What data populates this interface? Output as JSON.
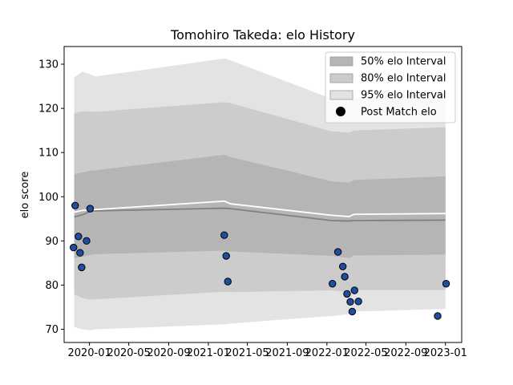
{
  "chart_data": {
    "type": "area",
    "title": "Tomohiro Takeda: elo History",
    "xlabel": "",
    "ylabel": "elo score",
    "xlim": [
      "2019-10-15",
      "2023-02-20"
    ],
    "ylim": [
      67,
      134
    ],
    "y_ticks": [
      70,
      80,
      90,
      100,
      110,
      120,
      130
    ],
    "x_ticks": [
      {
        "date": "2020-01-01",
        "label": "2020-01"
      },
      {
        "date": "2020-05-01",
        "label": "2020-05"
      },
      {
        "date": "2020-09-01",
        "label": "2020-09"
      },
      {
        "date": "2021-01-01",
        "label": "2021-01"
      },
      {
        "date": "2021-05-01",
        "label": "2021-05"
      },
      {
        "date": "2021-09-01",
        "label": "2021-09"
      },
      {
        "date": "2022-01-01",
        "label": "2022-01"
      },
      {
        "date": "2022-05-01",
        "label": "2022-05"
      },
      {
        "date": "2022-09-01",
        "label": "2022-09"
      },
      {
        "date": "2023-01-01",
        "label": "2023-01"
      }
    ],
    "legend_position": "top-right",
    "grid": false,
    "colors": {
      "band95": "#e3e3e3",
      "band80": "#cccccc",
      "band50": "#b5b5b5",
      "median_line": "#808080",
      "mean_line": "#ffffff",
      "points": "#1f4e9e",
      "point_edge": "#000000"
    },
    "legend": [
      {
        "label": "50% elo Interval",
        "key": "band50"
      },
      {
        "label": "80% elo Interval",
        "key": "band80"
      },
      {
        "label": "95% elo Interval",
        "key": "band95"
      },
      {
        "label": "Post Match elo",
        "key": "points"
      }
    ],
    "bands": {
      "dates": [
        "2019-11-15",
        "2019-12-10",
        "2020-01-01",
        "2020-01-20",
        "2021-02-20",
        "2021-03-10",
        "2022-01-15",
        "2022-03-10",
        "2022-03-25",
        "2023-01-01"
      ],
      "p95_upper": [
        127.0,
        128.3,
        127.8,
        127.2,
        131.3,
        130.9,
        122.2,
        121.8,
        122.3,
        123.6
      ],
      "p80_upper": [
        118.9,
        119.3,
        119.3,
        119.2,
        121.4,
        121.2,
        114.8,
        114.5,
        115.0,
        115.7
      ],
      "p50_upper": [
        105.1,
        105.5,
        105.9,
        106.0,
        109.5,
        109.0,
        103.5,
        103.2,
        103.8,
        104.6
      ],
      "median": [
        95.4,
        95.9,
        96.6,
        96.8,
        97.4,
        97.3,
        94.6,
        94.5,
        94.6,
        94.7
      ],
      "mean": [
        96.5,
        96.9,
        97.0,
        97.1,
        99.0,
        98.4,
        95.8,
        95.5,
        96.0,
        96.2
      ],
      "p50_lower": [
        86.1,
        86.4,
        86.8,
        87.0,
        87.8,
        87.6,
        86.6,
        86.1,
        86.7,
        86.9
      ],
      "p80_lower": [
        77.9,
        77.1,
        76.7,
        76.8,
        78.5,
        78.4,
        78.8,
        78.4,
        78.9,
        78.9
      ],
      "p95_lower": [
        70.5,
        70.0,
        69.8,
        70.0,
        71.1,
        71.3,
        73.0,
        73.4,
        74.0,
        74.6
      ]
    },
    "points": [
      {
        "date": "2019-11-18",
        "elo": 98.0
      },
      {
        "date": "2019-11-13",
        "elo": 88.5
      },
      {
        "date": "2019-11-28",
        "elo": 91.0
      },
      {
        "date": "2019-12-03",
        "elo": 87.3
      },
      {
        "date": "2019-12-08",
        "elo": 84.0
      },
      {
        "date": "2019-12-23",
        "elo": 90.0
      },
      {
        "date": "2020-01-03",
        "elo": 97.3
      },
      {
        "date": "2021-02-19",
        "elo": 91.3
      },
      {
        "date": "2021-02-25",
        "elo": 86.6
      },
      {
        "date": "2021-03-02",
        "elo": 80.8
      },
      {
        "date": "2022-01-18",
        "elo": 80.3
      },
      {
        "date": "2022-02-04",
        "elo": 87.5
      },
      {
        "date": "2022-02-19",
        "elo": 84.2
      },
      {
        "date": "2022-02-25",
        "elo": 81.9
      },
      {
        "date": "2022-03-04",
        "elo": 78.0
      },
      {
        "date": "2022-03-14",
        "elo": 76.2
      },
      {
        "date": "2022-03-20",
        "elo": 74.0
      },
      {
        "date": "2022-03-27",
        "elo": 78.8
      },
      {
        "date": "2022-04-08",
        "elo": 76.3
      },
      {
        "date": "2022-12-08",
        "elo": 73.0
      },
      {
        "date": "2023-01-03",
        "elo": 80.3
      }
    ]
  }
}
